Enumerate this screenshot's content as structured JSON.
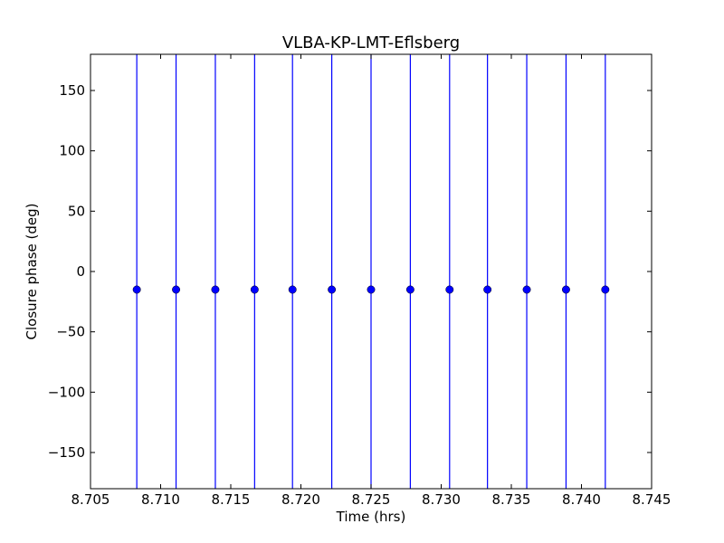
{
  "chart_data": {
    "type": "scatter",
    "title": "VLBA-KP-LMT-Eflsberg",
    "xlabel": "Time (hrs)",
    "ylabel": "Closure phase (deg)",
    "xlim": [
      8.705,
      8.745
    ],
    "ylim": [
      -180,
      180
    ],
    "xticks": [
      8.705,
      8.71,
      8.715,
      8.72,
      8.725,
      8.73,
      8.735,
      8.74,
      8.745
    ],
    "xtick_labels": [
      "8.705",
      "8.710",
      "8.715",
      "8.720",
      "8.725",
      "8.730",
      "8.735",
      "8.740",
      "8.745"
    ],
    "yticks": [
      150,
      100,
      50,
      0,
      -50,
      -100,
      -150
    ],
    "ytick_labels": [
      "150",
      "100",
      "50",
      "0",
      "−50",
      "−100",
      "−150"
    ],
    "grid": false,
    "marker_color": "#0000ff",
    "errorbar_color": "#0000ff",
    "points": [
      {
        "x": 8.7083,
        "y": -15,
        "err_low": -180,
        "err_high": 180
      },
      {
        "x": 8.7111,
        "y": -15,
        "err_low": -180,
        "err_high": 180
      },
      {
        "x": 8.7139,
        "y": -15,
        "err_low": -180,
        "err_high": 180
      },
      {
        "x": 8.7167,
        "y": -15,
        "err_low": -180,
        "err_high": 180
      },
      {
        "x": 8.7194,
        "y": -15,
        "err_low": -180,
        "err_high": 180
      },
      {
        "x": 8.7222,
        "y": -15,
        "err_low": -180,
        "err_high": 180
      },
      {
        "x": 8.725,
        "y": -15,
        "err_low": -180,
        "err_high": 180
      },
      {
        "x": 8.7278,
        "y": -15,
        "err_low": -180,
        "err_high": 180
      },
      {
        "x": 8.7306,
        "y": -15,
        "err_low": -180,
        "err_high": 180
      },
      {
        "x": 8.7333,
        "y": -15,
        "err_low": -180,
        "err_high": 180
      },
      {
        "x": 8.7361,
        "y": -15,
        "err_low": -180,
        "err_high": 180
      },
      {
        "x": 8.7389,
        "y": -15,
        "err_low": -180,
        "err_high": 180
      },
      {
        "x": 8.7417,
        "y": -15,
        "err_low": -180,
        "err_high": 180
      }
    ]
  }
}
